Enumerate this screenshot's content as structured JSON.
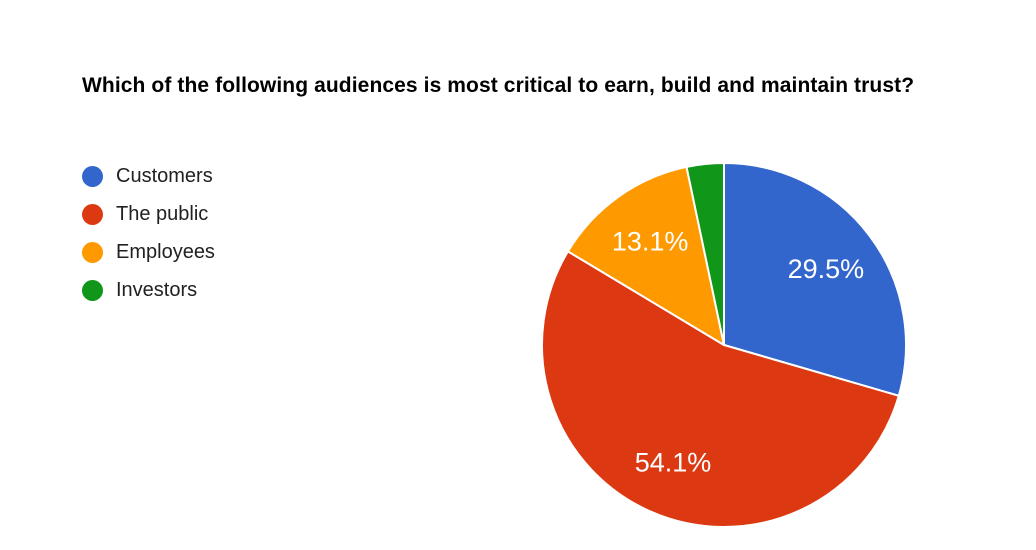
{
  "chart_data": {
    "type": "pie",
    "title": "Which of the following audiences is most critical to earn, build and maintain trust?",
    "categories": [
      "Customers",
      "The public",
      "Employees",
      "Investors"
    ],
    "values": [
      29.5,
      54.1,
      13.1,
      3.3
    ],
    "slice_labels": [
      "29.5%",
      "54.1%",
      "13.1%",
      ""
    ],
    "colors": [
      "#3366cc",
      "#dc3912",
      "#ff9900",
      "#109618"
    ],
    "slice_border_color": "#ffffff",
    "slice_label_color": "#ffffff",
    "legend_position": "left",
    "start_angle_deg": 0,
    "direction": "clockwise",
    "grid": false
  },
  "page": {
    "background_color": "#ffffff",
    "title_color": "#000000",
    "legend_text_color": "#212121"
  }
}
